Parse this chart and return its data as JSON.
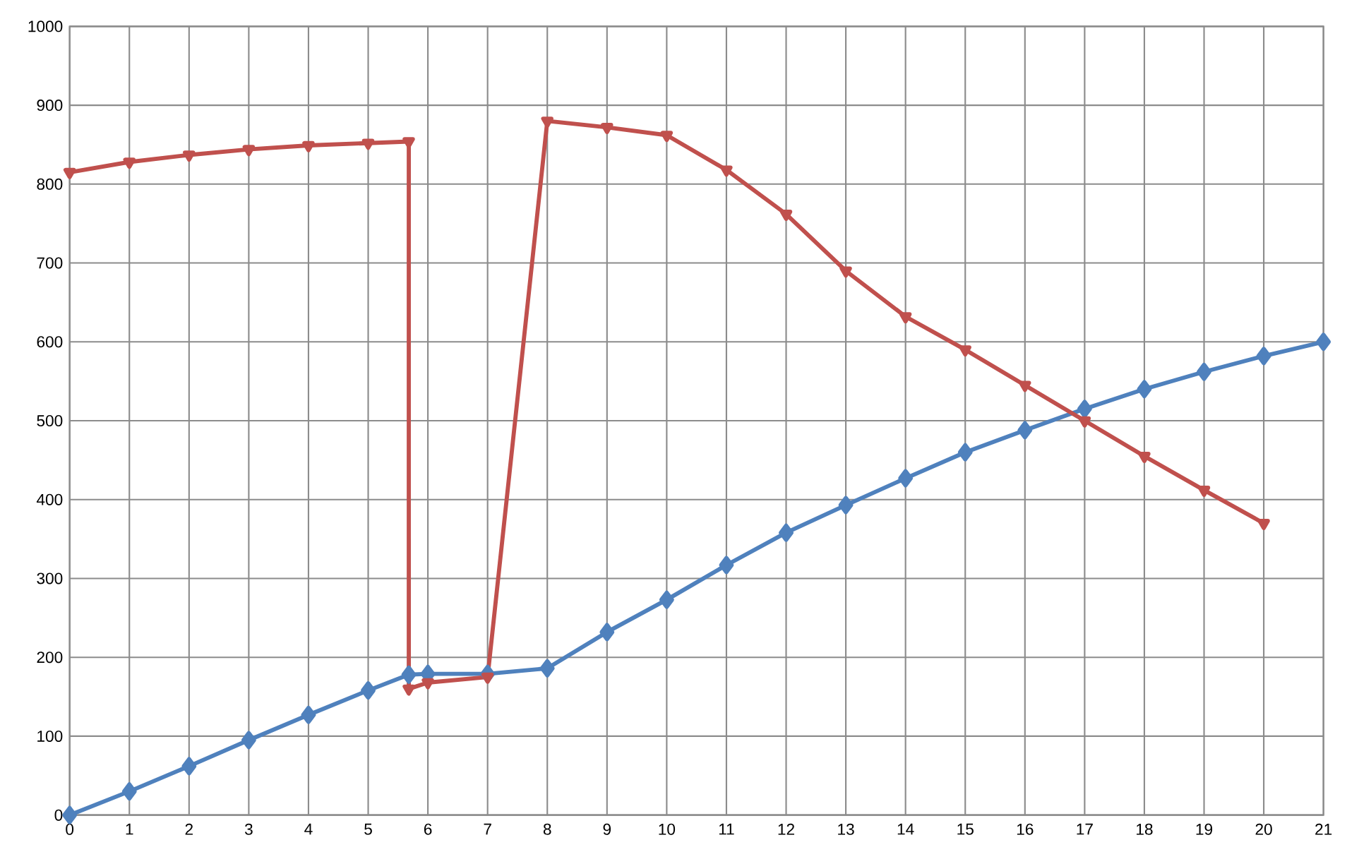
{
  "chart_data": {
    "type": "line",
    "xlim": [
      0,
      21
    ],
    "xticks": [
      0,
      1,
      2,
      3,
      4,
      5,
      6,
      7,
      8,
      9,
      10,
      11,
      12,
      13,
      14,
      15,
      16,
      17,
      18,
      19,
      20,
      21
    ],
    "ylim": [
      0,
      1000
    ],
    "yticks": [
      0,
      100,
      200,
      300,
      400,
      500,
      600,
      700,
      800,
      900,
      1000
    ],
    "grid": true,
    "line_style": "solid",
    "series": [
      {
        "color": "#c0504d",
        "marker": "triangle",
        "x": [
          0,
          1,
          2,
          3,
          4,
          5,
          5.68,
          5.68,
          6,
          7,
          8,
          9,
          10,
          11,
          12,
          13,
          14,
          15,
          16,
          17,
          18,
          19,
          20
        ],
        "values": [
          815,
          828,
          837,
          844,
          849,
          852,
          854,
          160,
          168,
          175,
          880,
          872,
          862,
          818,
          762,
          690,
          632,
          590,
          545,
          500,
          455,
          412,
          370
        ]
      },
      {
        "color": "#4f81bd",
        "marker": "diamond",
        "x": [
          0,
          1,
          2,
          3,
          4,
          5,
          5.68,
          6,
          7,
          8,
          9,
          10,
          11,
          12,
          13,
          14,
          15,
          16,
          17,
          18,
          19,
          20,
          21
        ],
        "values": [
          0,
          30,
          62,
          95,
          127,
          158,
          178,
          179,
          179,
          186,
          232,
          273,
          317,
          358,
          393,
          427,
          460,
          488,
          515,
          540,
          562,
          582,
          600
        ]
      }
    ]
  }
}
